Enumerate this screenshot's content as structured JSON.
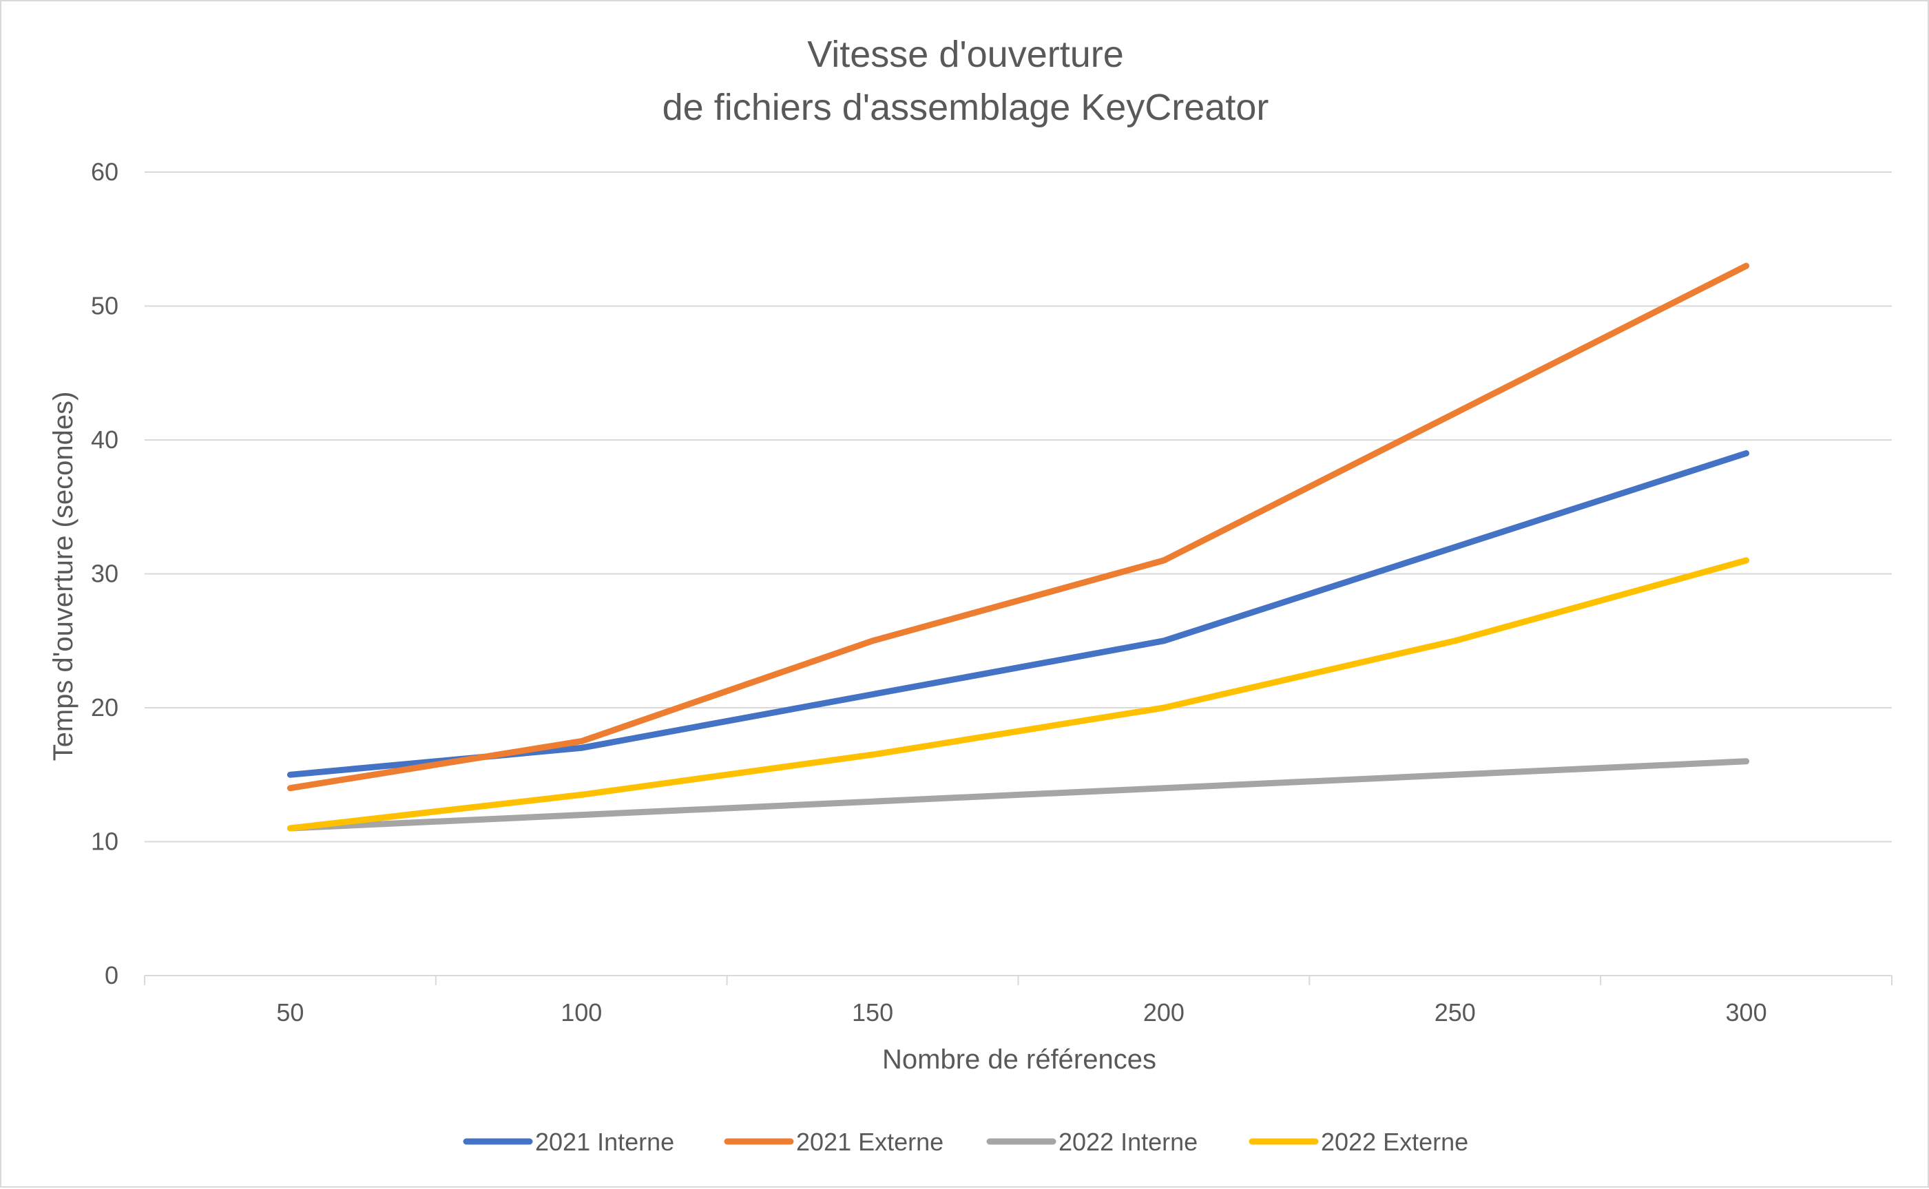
{
  "chart_data": {
    "type": "line",
    "title_lines": [
      "Vitesse d'ouverture",
      "de fichiers d'assemblage KeyCreator"
    ],
    "xlabel": "Nombre de références",
    "ylabel": "Temps d'ouverture (secondes)",
    "categories": [
      "50",
      "100",
      "150",
      "200",
      "250",
      "300"
    ],
    "ylim": [
      0,
      60
    ],
    "yticks": [
      "0",
      "10",
      "20",
      "30",
      "40",
      "50",
      "60"
    ],
    "grid": "horizontal",
    "legend_position": "bottom",
    "series": [
      {
        "name": "2021 Interne",
        "color": "#4472C4",
        "values": [
          15,
          17,
          21,
          25,
          32,
          39
        ]
      },
      {
        "name": "2021 Externe",
        "color": "#ED7D31",
        "values": [
          14,
          17.5,
          25,
          31,
          42,
          53
        ]
      },
      {
        "name": "2022 Interne",
        "color": "#A5A5A5",
        "values": [
          11,
          12,
          13,
          14,
          15,
          16
        ]
      },
      {
        "name": "2022 Externe",
        "color": "#FFC000",
        "values": [
          11,
          13.5,
          16.5,
          20,
          25,
          31
        ]
      }
    ]
  }
}
